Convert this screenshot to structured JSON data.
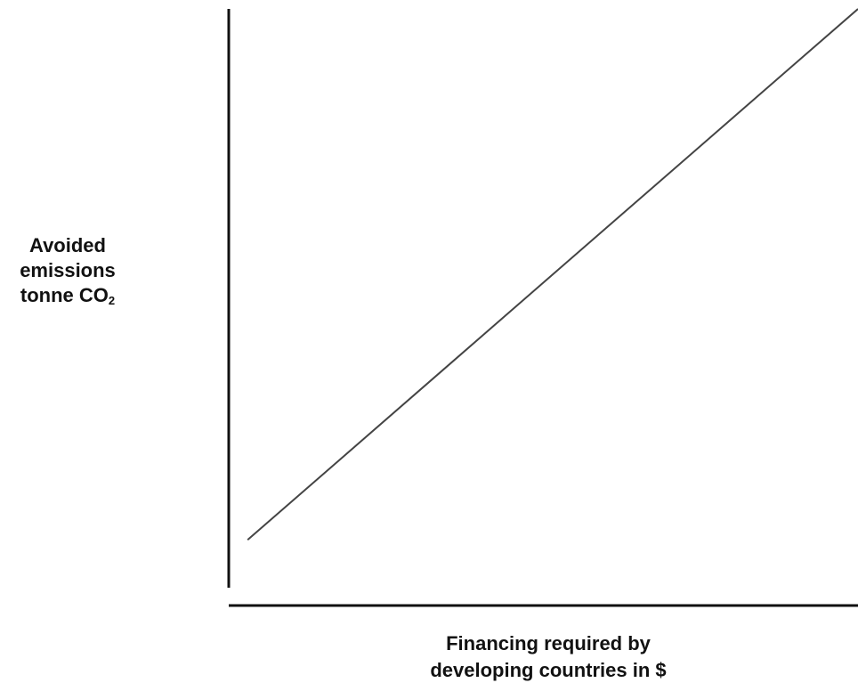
{
  "chart_data": {
    "type": "line",
    "title": "",
    "ylabel_lines": [
      "Avoided",
      "emissions",
      "tonne CO"
    ],
    "ylabel_subscript": "2",
    "xlabel_lines": [
      "Financing required by",
      "developing countries in $"
    ],
    "series": [
      {
        "x": [
          0.03,
          1.0
        ],
        "y": [
          0.11,
          1.0
        ]
      }
    ],
    "xlim": [
      0,
      1
    ],
    "ylim": [
      0,
      1
    ],
    "grid": false,
    "legend": "none",
    "ticks": false,
    "colors": {
      "axis": "#111111",
      "line": "#444444",
      "text": "#111111"
    }
  }
}
